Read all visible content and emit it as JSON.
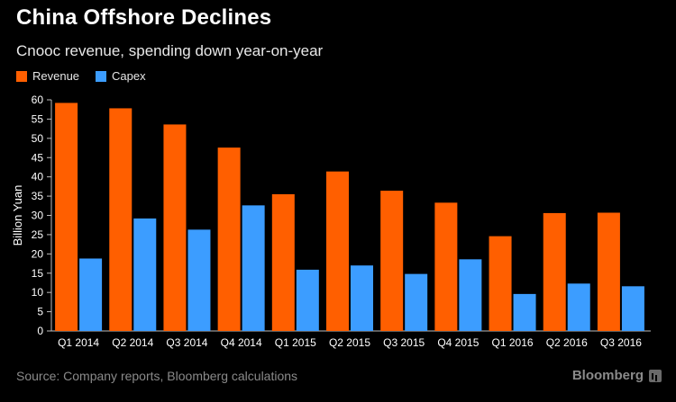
{
  "title": "China Offshore Declines",
  "subtitle": "Cnooc revenue, spending down year-on-year",
  "source": "Source: Company reports, Bloomberg calculations",
  "brand": "Bloomberg",
  "colors": {
    "revenue": "#ff5f00",
    "capex": "#3c9dff",
    "background": "#000000",
    "axis_text": "#ffffff",
    "grid": "#3a3a3a"
  },
  "chart_data": {
    "type": "bar",
    "ylabel": "Billion Yuan",
    "ylim": [
      0,
      60
    ],
    "yticks": [
      0,
      5,
      10,
      15,
      20,
      25,
      30,
      35,
      40,
      45,
      50,
      55,
      60
    ],
    "grid": false,
    "legend_position": "top-left",
    "categories": [
      "Q1 2014",
      "Q2 2014",
      "Q3 2014",
      "Q4 2014",
      "Q1 2015",
      "Q2 2015",
      "Q3 2015",
      "Q4 2015",
      "Q1 2016",
      "Q2 2016",
      "Q3 2016"
    ],
    "category_labels": [
      [
        "Q1",
        "2014"
      ],
      [
        "Q2",
        "2014"
      ],
      [
        "Q3",
        "2014"
      ],
      [
        "Q4",
        "2014"
      ],
      [
        "Q1",
        "2015"
      ],
      [
        "Q2",
        "2015"
      ],
      [
        "Q3",
        "2015"
      ],
      [
        "Q4",
        "2015"
      ],
      [
        "Q1",
        "2016"
      ],
      [
        "Q2",
        "2016"
      ],
      [
        "Q3",
        "2016"
      ]
    ],
    "series": [
      {
        "name": "Revenue",
        "color": "#ff5f00",
        "values": [
          59.2,
          57.8,
          53.6,
          47.6,
          35.5,
          41.4,
          36.4,
          33.3,
          24.6,
          30.6,
          30.7
        ]
      },
      {
        "name": "Capex",
        "color": "#3c9dff",
        "values": [
          18.8,
          29.2,
          26.3,
          32.6,
          15.9,
          17.0,
          14.8,
          18.6,
          9.6,
          12.3,
          11.6
        ]
      }
    ]
  }
}
